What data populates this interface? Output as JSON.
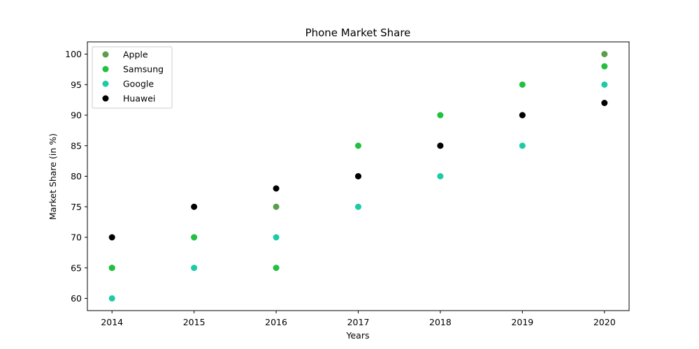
{
  "chart_data": {
    "type": "scatter",
    "title": "Phone Market Share",
    "xlabel": "Years",
    "ylabel": "Market Share (in %)",
    "x": [
      2014,
      2015,
      2016,
      2017,
      2018,
      2019,
      2020
    ],
    "xlim": [
      2013.7,
      2020.3
    ],
    "ylim": [
      58,
      102
    ],
    "yticks": [
      60,
      65,
      70,
      75,
      80,
      85,
      90,
      95,
      100
    ],
    "grid": false,
    "legend_position": "upper-left",
    "series": [
      {
        "name": "Apple",
        "color": "#5a9e4b",
        "values": [
          65,
          70,
          75,
          80,
          85,
          90,
          100
        ]
      },
      {
        "name": "Samsung",
        "color": "#22c040",
        "values": [
          65,
          70,
          65,
          85,
          90,
          95,
          98
        ]
      },
      {
        "name": "Google",
        "color": "#1ccba6",
        "values": [
          60,
          65,
          70,
          75,
          80,
          85,
          95
        ]
      },
      {
        "name": "Huawei",
        "color": "#000000",
        "values": [
          70,
          75,
          78,
          80,
          85,
          90,
          92
        ]
      }
    ]
  }
}
